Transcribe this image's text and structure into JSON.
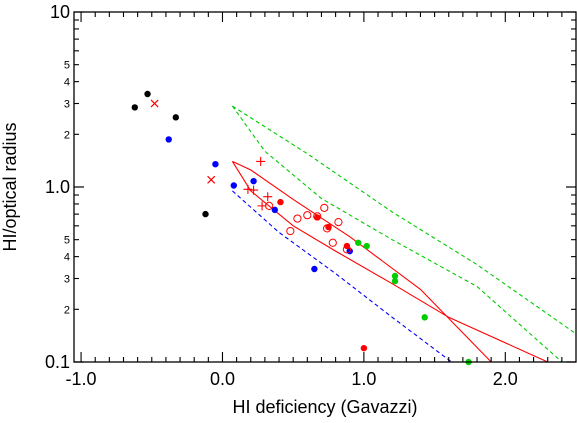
{
  "chart_data": {
    "type": "scatter",
    "xlabel": "HI deficiency (Gavazzi)",
    "ylabel": "HI/optical radius",
    "xlim": [
      -1.05,
      2.5
    ],
    "ylim": [
      0.1,
      10
    ],
    "y_scale": "log",
    "x_ticks": [
      "-1.0",
      "0.0",
      "1.0",
      "2.0"
    ],
    "y_major_ticks": [
      "10",
      "1.0",
      "0.1"
    ],
    "y_minor_ticks": [
      "5",
      "4",
      "3",
      "2",
      "5",
      "4",
      "3",
      "2"
    ],
    "y_minor_values": [
      5,
      4,
      3,
      2,
      0.5,
      0.4,
      0.3,
      0.2
    ],
    "colors": {
      "black": "#000000",
      "red": "#ff0000",
      "blue": "#0000ff",
      "green": "#00cc00"
    },
    "series": [
      {
        "color": "black",
        "marker": "filled-circle",
        "x": [
          -0.62,
          -0.53,
          -0.33,
          -0.12
        ],
        "y": [
          2.85,
          3.4,
          2.5,
          0.7
        ]
      },
      {
        "color": "blue",
        "marker": "filled-circle",
        "x": [
          -0.38,
          -0.05,
          0.08,
          0.22,
          0.37,
          0.65,
          0.9
        ],
        "y": [
          1.87,
          1.35,
          1.02,
          1.08,
          0.74,
          0.34,
          0.43
        ]
      },
      {
        "color": "red",
        "marker": "x",
        "x": [
          -0.48,
          -0.08
        ],
        "y": [
          3.0,
          1.1
        ]
      },
      {
        "color": "red",
        "marker": "plus",
        "x": [
          0.18,
          0.22,
          0.27,
          0.28,
          0.32
        ],
        "y": [
          0.97,
          0.96,
          1.4,
          0.78,
          0.88
        ]
      },
      {
        "color": "red",
        "marker": "open-circle",
        "x": [
          0.33,
          0.48,
          0.53,
          0.6,
          0.67,
          0.72,
          0.74,
          0.78,
          0.82,
          0.88
        ],
        "y": [
          0.78,
          0.56,
          0.66,
          0.69,
          0.68,
          0.76,
          0.58,
          0.48,
          0.63,
          0.44
        ]
      },
      {
        "color": "red",
        "marker": "filled-circle",
        "x": [
          0.41,
          0.67,
          0.75,
          0.88,
          1.0
        ],
        "y": [
          0.82,
          0.67,
          0.59,
          0.46,
          0.12
        ]
      },
      {
        "color": "green",
        "marker": "filled-circle",
        "x": [
          0.96,
          1.02,
          1.22,
          1.22,
          1.43,
          1.74
        ],
        "y": [
          0.48,
          0.46,
          0.31,
          0.29,
          0.18,
          0.1
        ]
      }
    ],
    "curves": [
      {
        "color": "red",
        "style": "solid",
        "x": [
          0.07,
          0.2,
          0.5,
          0.9,
          1.4,
          1.9
        ],
        "y": [
          1.4,
          1.25,
          0.85,
          0.52,
          0.26,
          0.1
        ]
      },
      {
        "color": "red",
        "style": "solid",
        "x": [
          0.07,
          0.2,
          0.5,
          0.8,
          1.2,
          1.6,
          2.3
        ],
        "y": [
          1.4,
          0.95,
          0.6,
          0.43,
          0.28,
          0.18,
          0.1
        ]
      },
      {
        "color": "green",
        "style": "dashed",
        "x": [
          0.07,
          0.3,
          0.7,
          1.2,
          1.8,
          2.4
        ],
        "y": [
          2.9,
          1.6,
          0.86,
          0.5,
          0.27,
          0.1
        ]
      },
      {
        "color": "green",
        "style": "dashed",
        "x": [
          0.07,
          0.6,
          1.2,
          1.8,
          2.5
        ],
        "y": [
          2.9,
          1.55,
          0.72,
          0.36,
          0.145
        ]
      },
      {
        "color": "blue",
        "style": "dashed",
        "x": [
          0.07,
          0.4,
          0.8,
          1.2,
          1.62
        ],
        "y": [
          0.95,
          0.55,
          0.32,
          0.18,
          0.1
        ]
      }
    ]
  }
}
